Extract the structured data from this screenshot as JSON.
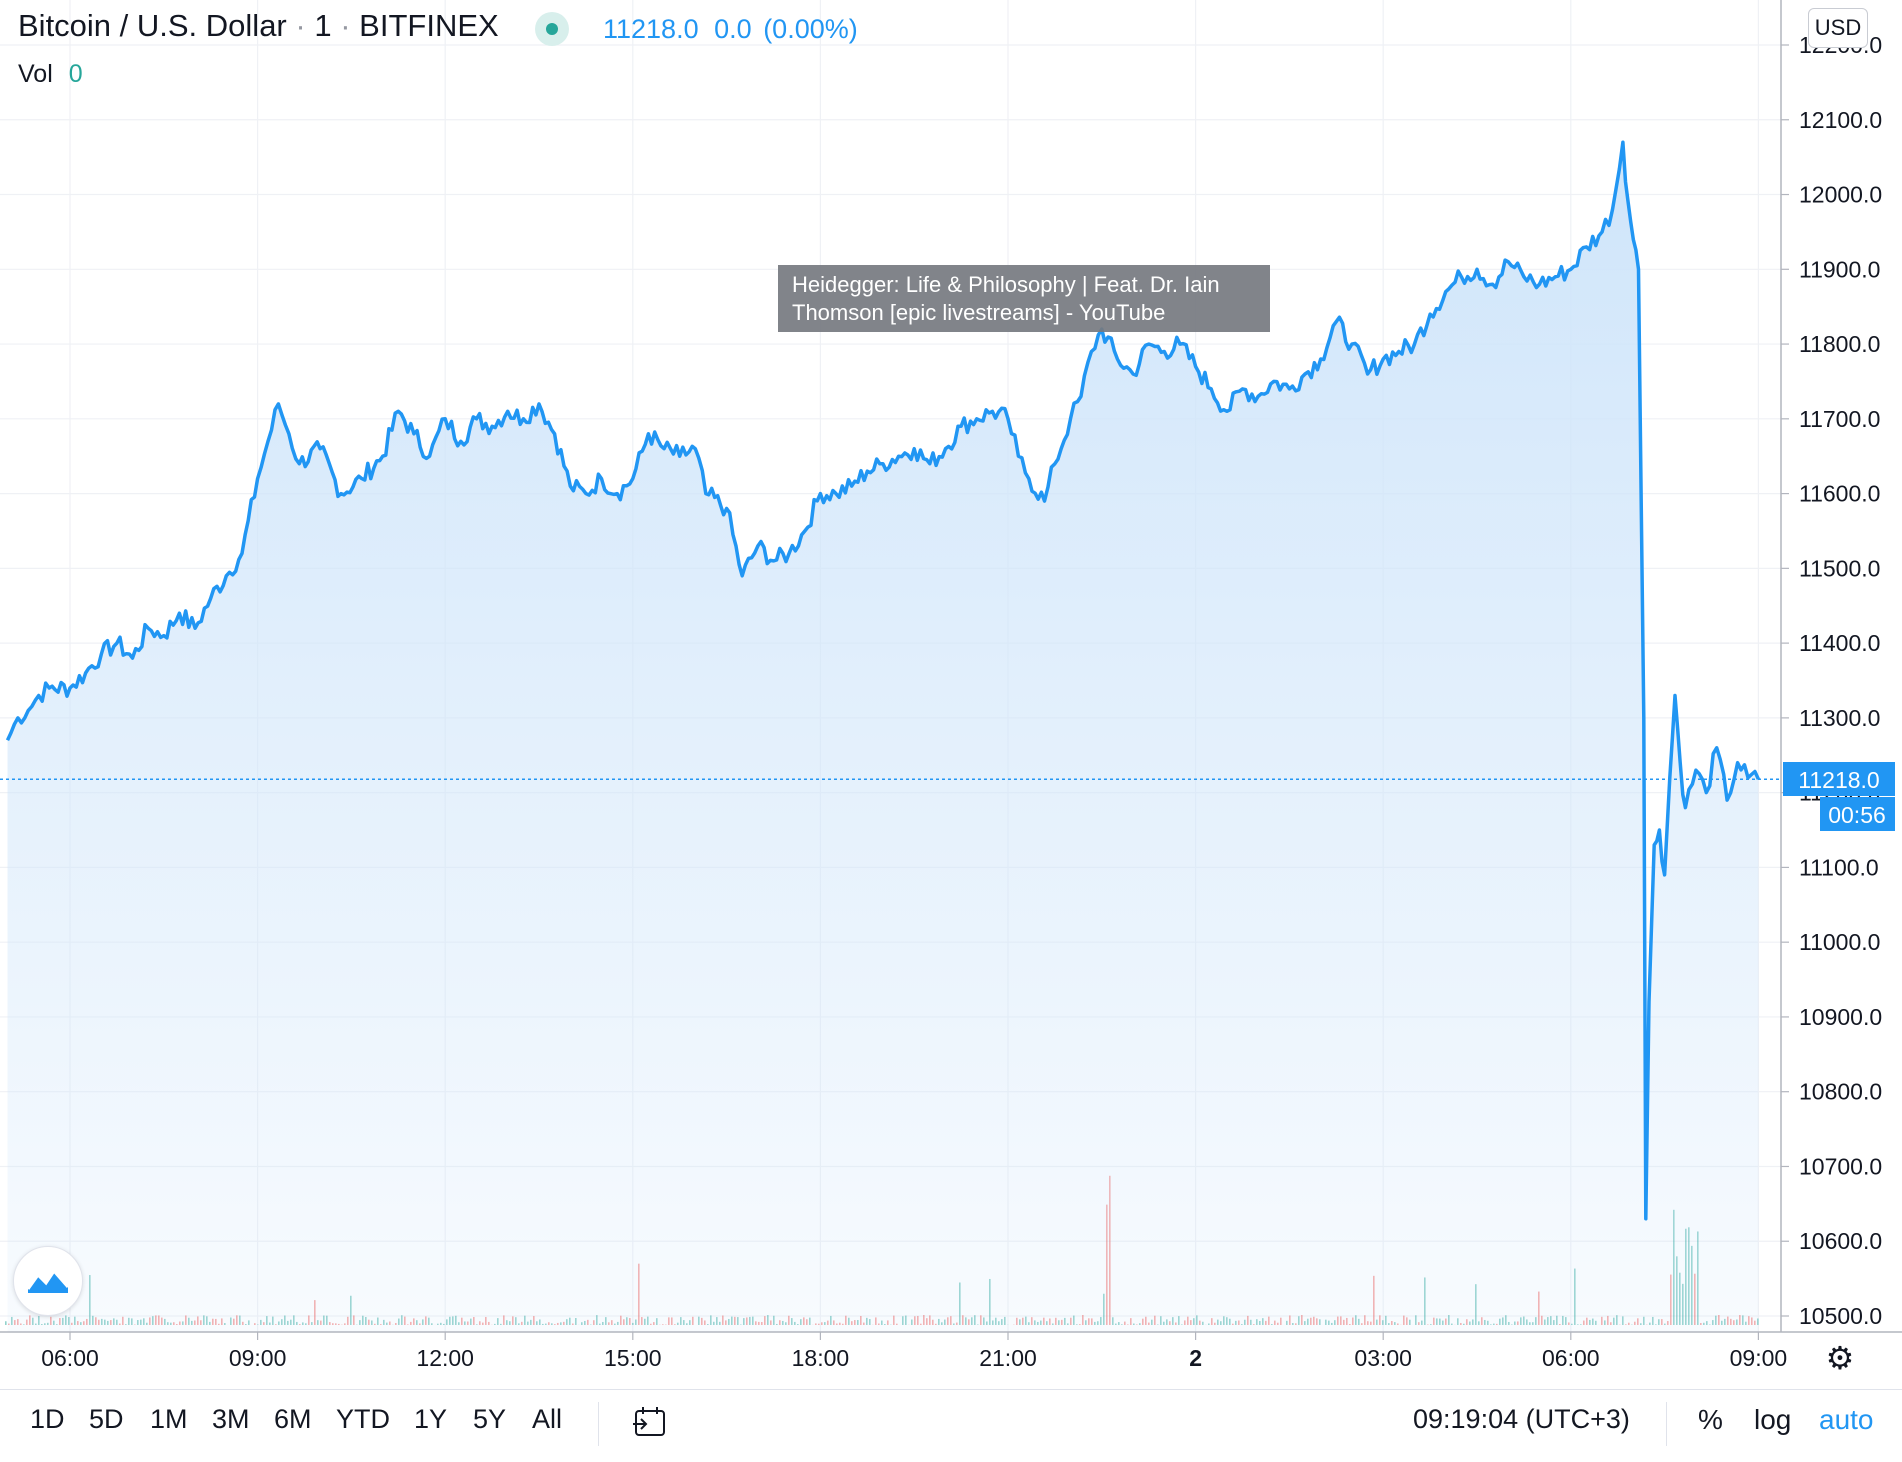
{
  "header": {
    "symbol": "Bitcoin / U.S. Dollar",
    "interval": "1",
    "exchange": "BITFINEX",
    "separator": "·",
    "last_price": "11218.0",
    "change": "0.0",
    "change_pct": "(0.00%)",
    "vol_label": "Vol",
    "vol_value": "0"
  },
  "currency_button": "USD",
  "tooltip": {
    "line1": "Heidegger: Life & Philosophy | Feat. Dr. Iain",
    "line2": "Thomson [epic livestreams] - YouTube"
  },
  "price_tag": "11218.0",
  "countdown_tag": "00:56",
  "colors": {
    "line": "#2196f3",
    "fill_top": "#d4e8fa",
    "vol_up": "#26a69a",
    "vol_down": "#ef5350",
    "grid": "#eff1f5"
  },
  "chart_data": {
    "type": "area",
    "title": "",
    "xlabel": "",
    "ylabel": "",
    "ylim": [
      10500,
      12220
    ],
    "y_ticks": [
      "12200.0",
      "12100.0",
      "12000.0",
      "11900.0",
      "11800.0",
      "11700.0",
      "11600.0",
      "11500.0",
      "11400.0",
      "11300.0",
      "11200.0",
      "11100.0",
      "11000.0",
      "10900.0",
      "10800.0",
      "10700.0",
      "10600.0",
      "10500.0"
    ],
    "x_ticks": [
      "06:00",
      "09:00",
      "12:00",
      "15:00",
      "18:00",
      "21:00",
      "2",
      "03:00",
      "06:00",
      "09:00"
    ],
    "last_value": 11218.0,
    "series": [
      {
        "points": [
          [
            "05:00",
            11270
          ],
          [
            "05:10",
            11300
          ],
          [
            "05:20",
            11310
          ],
          [
            "05:30",
            11330
          ],
          [
            "05:40",
            11340
          ],
          [
            "06:00",
            11340
          ],
          [
            "06:15",
            11360
          ],
          [
            "06:30",
            11385
          ],
          [
            "06:45",
            11400
          ],
          [
            "07:00",
            11380
          ],
          [
            "07:15",
            11420
          ],
          [
            "07:30",
            11410
          ],
          [
            "07:45",
            11440
          ],
          [
            "08:00",
            11420
          ],
          [
            "08:15",
            11460
          ],
          [
            "08:30",
            11490
          ],
          [
            "08:45",
            11520
          ],
          [
            "09:00",
            11620
          ],
          [
            "09:10",
            11670
          ],
          [
            "09:20",
            11720
          ],
          [
            "09:30",
            11680
          ],
          [
            "09:40",
            11640
          ],
          [
            "10:00",
            11660
          ],
          [
            "10:20",
            11600
          ],
          [
            "10:40",
            11620
          ],
          [
            "11:00",
            11650
          ],
          [
            "11:15",
            11710
          ],
          [
            "11:30",
            11680
          ],
          [
            "11:45",
            11650
          ],
          [
            "12:00",
            11700
          ],
          [
            "12:15",
            11670
          ],
          [
            "12:30",
            11700
          ],
          [
            "12:45",
            11690
          ],
          [
            "13:00",
            11710
          ],
          [
            "13:15",
            11700
          ],
          [
            "13:30",
            11720
          ],
          [
            "13:45",
            11680
          ],
          [
            "14:00",
            11610
          ],
          [
            "14:15",
            11600
          ],
          [
            "14:30",
            11620
          ],
          [
            "14:45",
            11600
          ],
          [
            "15:00",
            11620
          ],
          [
            "15:15",
            11680
          ],
          [
            "15:30",
            11660
          ],
          [
            "15:45",
            11650
          ],
          [
            "16:00",
            11660
          ],
          [
            "16:10",
            11600
          ],
          [
            "16:30",
            11580
          ],
          [
            "16:45",
            11490
          ],
          [
            "17:00",
            11530
          ],
          [
            "17:15",
            11510
          ],
          [
            "17:30",
            11520
          ],
          [
            "17:45",
            11550
          ],
          [
            "18:00",
            11600
          ],
          [
            "18:15",
            11600
          ],
          [
            "18:30",
            11610
          ],
          [
            "18:45",
            11630
          ],
          [
            "19:00",
            11640
          ],
          [
            "19:15",
            11650
          ],
          [
            "19:30",
            11660
          ],
          [
            "19:45",
            11640
          ],
          [
            "20:00",
            11660
          ],
          [
            "20:15",
            11690
          ],
          [
            "20:30",
            11700
          ],
          [
            "20:45",
            11710
          ],
          [
            "21:00",
            11700
          ],
          [
            "21:10",
            11650
          ],
          [
            "21:20",
            11620
          ],
          [
            "21:35",
            11590
          ],
          [
            "21:45",
            11640
          ],
          [
            "22:00",
            11700
          ],
          [
            "22:10",
            11730
          ],
          [
            "22:20",
            11790
          ],
          [
            "22:30",
            11820
          ],
          [
            "22:45",
            11780
          ],
          [
            "23:00",
            11760
          ],
          [
            "23:15",
            11800
          ],
          [
            "23:30",
            11790
          ],
          [
            "23:45",
            11800
          ],
          [
            "00:00",
            11770
          ],
          [
            "00:15",
            11740
          ],
          [
            "00:30",
            11710
          ],
          [
            "00:45",
            11740
          ],
          [
            "01:00",
            11730
          ],
          [
            "01:15",
            11750
          ],
          [
            "01:30",
            11740
          ],
          [
            "01:45",
            11760
          ],
          [
            "02:00",
            11780
          ],
          [
            "02:15",
            11830
          ],
          [
            "02:30",
            11800
          ],
          [
            "02:45",
            11760
          ],
          [
            "03:00",
            11780
          ],
          [
            "03:15",
            11790
          ],
          [
            "03:30",
            11800
          ],
          [
            "03:45",
            11840
          ],
          [
            "04:00",
            11870
          ],
          [
            "04:15",
            11890
          ],
          [
            "04:30",
            11900
          ],
          [
            "04:45",
            11880
          ],
          [
            "05:00",
            11910
          ],
          [
            "05:15",
            11890
          ],
          [
            "05:30",
            11880
          ],
          [
            "05:45",
            11890
          ],
          [
            "06:00",
            11900
          ],
          [
            "06:15",
            11930
          ],
          [
            "06:30",
            11950
          ],
          [
            "06:40",
            11980
          ],
          [
            "06:50",
            12070
          ],
          [
            "06:55",
            11990
          ],
          [
            "07:00",
            11940
          ],
          [
            "07:05",
            11900
          ],
          [
            "07:10",
            11300
          ],
          [
            "07:12",
            10630
          ],
          [
            "07:15",
            10920
          ],
          [
            "07:20",
            11130
          ],
          [
            "07:25",
            11150
          ],
          [
            "07:30",
            11090
          ],
          [
            "07:35",
            11220
          ],
          [
            "07:40",
            11330
          ],
          [
            "07:45",
            11240
          ],
          [
            "07:50",
            11180
          ],
          [
            "08:00",
            11230
          ],
          [
            "08:10",
            11200
          ],
          [
            "08:20",
            11260
          ],
          [
            "08:30",
            11190
          ],
          [
            "08:40",
            11240
          ],
          [
            "08:50",
            11220
          ],
          [
            "09:00",
            11218
          ]
        ]
      }
    ]
  },
  "bottom_bar": {
    "ranges": [
      "1D",
      "5D",
      "1M",
      "3M",
      "6M",
      "YTD",
      "1Y",
      "5Y",
      "All"
    ],
    "time": "09:19:04 (UTC+3)",
    "percent_label": "%",
    "log_label": "log",
    "auto_label": "auto"
  }
}
